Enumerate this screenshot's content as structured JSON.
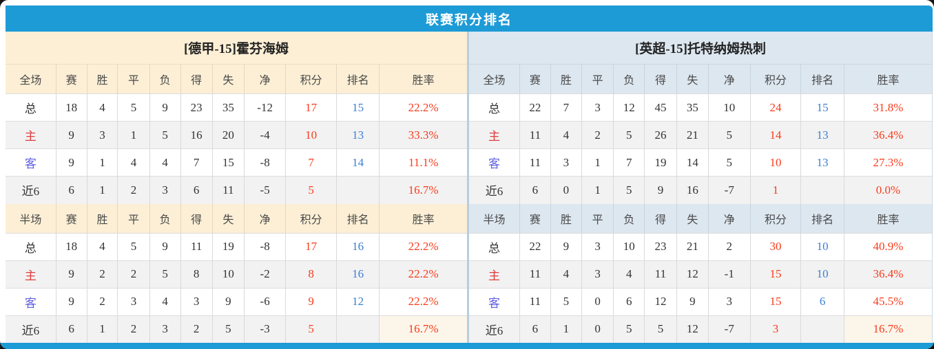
{
  "title": "联赛积分排名",
  "colors": {
    "accent_blue": "#1d9bd6",
    "panel_cream": "#fcefd5",
    "panel_light_blue": "#dde7f0",
    "points_red": "#f83b1b",
    "rank_blue": "#3b7fd4",
    "home_label_red": "#e23a3a",
    "away_label_violet": "#5e5ee0"
  },
  "panels": [
    {
      "team_title": "[德甲-15]霍芬海姆",
      "sections": [
        {
          "scope": "全场",
          "headers": [
            "全场",
            "赛",
            "胜",
            "平",
            "负",
            "得",
            "失",
            "净",
            "积分",
            "排名",
            "胜率"
          ],
          "rows": [
            {
              "type": "total",
              "cells": [
                "总",
                "18",
                "4",
                "5",
                "9",
                "23",
                "35",
                "-12",
                "17",
                "15",
                "22.2%"
              ]
            },
            {
              "type": "home",
              "cells": [
                "主",
                "9",
                "3",
                "1",
                "5",
                "16",
                "20",
                "-4",
                "10",
                "13",
                "33.3%"
              ]
            },
            {
              "type": "away",
              "cells": [
                "客",
                "9",
                "1",
                "4",
                "4",
                "7",
                "15",
                "-8",
                "7",
                "14",
                "11.1%"
              ]
            },
            {
              "type": "recent",
              "cells": [
                "近6",
                "6",
                "1",
                "2",
                "3",
                "6",
                "11",
                "-5",
                "5",
                "",
                "16.7%"
              ]
            }
          ]
        },
        {
          "scope": "半场",
          "headers": [
            "半场",
            "赛",
            "胜",
            "平",
            "负",
            "得",
            "失",
            "净",
            "积分",
            "排名",
            "胜率"
          ],
          "rows": [
            {
              "type": "total",
              "cells": [
                "总",
                "18",
                "4",
                "5",
                "9",
                "11",
                "19",
                "-8",
                "17",
                "16",
                "22.2%"
              ]
            },
            {
              "type": "home",
              "cells": [
                "主",
                "9",
                "2",
                "2",
                "5",
                "8",
                "10",
                "-2",
                "8",
                "16",
                "22.2%"
              ]
            },
            {
              "type": "away",
              "cells": [
                "客",
                "9",
                "2",
                "3",
                "4",
                "3",
                "9",
                "-6",
                "9",
                "12",
                "22.2%"
              ]
            },
            {
              "type": "recent",
              "cells": [
                "近6",
                "6",
                "1",
                "2",
                "3",
                "2",
                "5",
                "-3",
                "5",
                "",
                "16.7%"
              ]
            }
          ]
        }
      ]
    },
    {
      "team_title": "[英超-15]托特纳姆热刺",
      "sections": [
        {
          "scope": "全场",
          "headers": [
            "全场",
            "赛",
            "胜",
            "平",
            "负",
            "得",
            "失",
            "净",
            "积分",
            "排名",
            "胜率"
          ],
          "rows": [
            {
              "type": "total",
              "cells": [
                "总",
                "22",
                "7",
                "3",
                "12",
                "45",
                "35",
                "10",
                "24",
                "15",
                "31.8%"
              ]
            },
            {
              "type": "home",
              "cells": [
                "主",
                "11",
                "4",
                "2",
                "5",
                "26",
                "21",
                "5",
                "14",
                "13",
                "36.4%"
              ]
            },
            {
              "type": "away",
              "cells": [
                "客",
                "11",
                "3",
                "1",
                "7",
                "19",
                "14",
                "5",
                "10",
                "13",
                "27.3%"
              ]
            },
            {
              "type": "recent",
              "cells": [
                "近6",
                "6",
                "0",
                "1",
                "5",
                "9",
                "16",
                "-7",
                "1",
                "",
                "0.0%"
              ]
            }
          ]
        },
        {
          "scope": "半场",
          "headers": [
            "半场",
            "赛",
            "胜",
            "平",
            "负",
            "得",
            "失",
            "净",
            "积分",
            "排名",
            "胜率"
          ],
          "rows": [
            {
              "type": "total",
              "cells": [
                "总",
                "22",
                "9",
                "3",
                "10",
                "23",
                "21",
                "2",
                "30",
                "10",
                "40.9%"
              ]
            },
            {
              "type": "home",
              "cells": [
                "主",
                "11",
                "4",
                "3",
                "4",
                "11",
                "12",
                "-1",
                "15",
                "10",
                "36.4%"
              ]
            },
            {
              "type": "away",
              "cells": [
                "客",
                "11",
                "5",
                "0",
                "6",
                "12",
                "9",
                "3",
                "15",
                "6",
                "45.5%"
              ]
            },
            {
              "type": "recent",
              "cells": [
                "近6",
                "6",
                "1",
                "0",
                "5",
                "5",
                "12",
                "-7",
                "3",
                "",
                "16.7%"
              ]
            }
          ]
        }
      ]
    }
  ]
}
